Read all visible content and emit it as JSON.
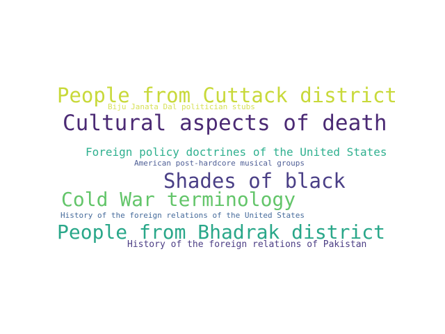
{
  "words": [
    {
      "text": "People from Cuttack district",
      "color": "#c8d93a"
    },
    {
      "text": "Biju Janata Dal politician stubs",
      "color": "#d7e15a"
    },
    {
      "text": "Cultural aspects of death",
      "color": "#4b2a74"
    },
    {
      "text": "Foreign policy doctrines of the United States",
      "color": "#2fb08f"
    },
    {
      "text": "American post-hardcore musical groups",
      "color": "#4f5f96"
    },
    {
      "text": "Shades of black",
      "color": "#4a3f86"
    },
    {
      "text": "Cold War terminology",
      "color": "#63c56a"
    },
    {
      "text": "History of the foreign relations of the United States",
      "color": "#466b9b"
    },
    {
      "text": "People from Bhadrak district",
      "color": "#29a789"
    },
    {
      "text": "History of the foreign relations of Pakistan",
      "color": "#4b3d84"
    }
  ]
}
